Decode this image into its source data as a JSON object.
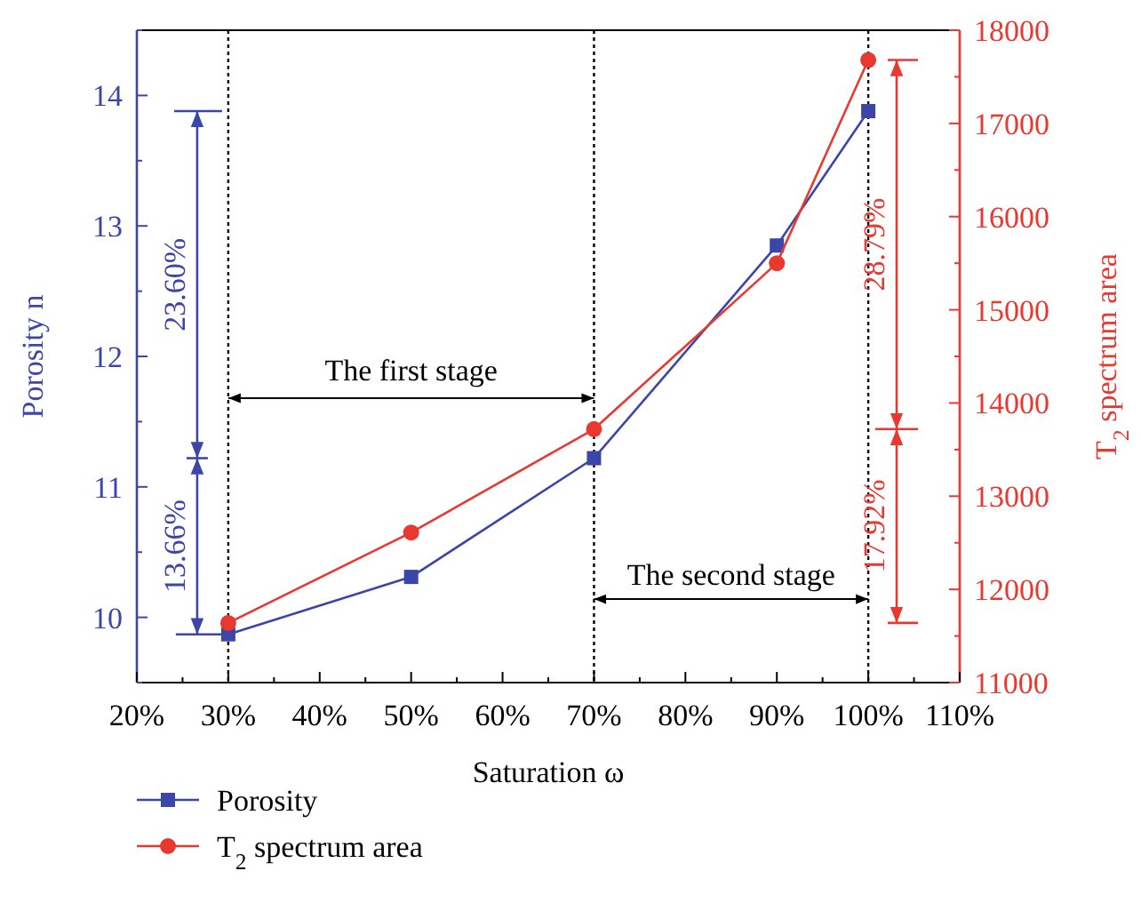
{
  "chart_data": {
    "type": "line",
    "xlabel": "Saturation ω",
    "ylabel": "Porosity n",
    "y2label": "T$_{2}$ spectrum area",
    "x": [
      30,
      50,
      70,
      90,
      100
    ],
    "series": [
      {
        "name": "Porosity",
        "color": "#3c46a8",
        "values": [
          9.87,
          10.31,
          11.22,
          12.85,
          13.88
        ],
        "marker": "square"
      },
      {
        "name": "T$_{2}$ spectrum area",
        "color": "#e8382f",
        "values": [
          11640,
          12610,
          13720,
          15500,
          17680
        ],
        "axis": "y2",
        "marker": "circle"
      }
    ],
    "xlim": [
      20,
      110
    ],
    "xticks": [
      {
        "value": 20,
        "label": "20%"
      },
      {
        "value": 30,
        "label": "30%"
      },
      {
        "value": 40,
        "label": "40%"
      },
      {
        "value": 50,
        "label": "50%"
      },
      {
        "value": 60,
        "label": "60%"
      },
      {
        "value": 70,
        "label": "70%"
      },
      {
        "value": 80,
        "label": "80%"
      },
      {
        "value": 90,
        "label": "90%"
      },
      {
        "value": 100,
        "label": "100%"
      },
      {
        "value": 110,
        "label": "110%"
      }
    ],
    "ylim": [
      9.5,
      14.5
    ],
    "yticks": [
      10,
      11,
      12,
      13,
      14
    ],
    "y2lim": [
      11000,
      18000
    ],
    "y2ticks": [
      11000,
      12000,
      13000,
      14000,
      15000,
      16000,
      17000,
      18000
    ],
    "ref_lines": [
      {
        "axis": "x",
        "value": 30,
        "line_style": "dotted",
        "color": "#000000"
      },
      {
        "axis": "x",
        "value": 70,
        "line_style": "dotted",
        "color": "#000000"
      },
      {
        "axis": "x",
        "value": 100,
        "line_style": "dotted",
        "color": "#000000"
      }
    ],
    "annotations": [
      "The first stage",
      "The second stage",
      "23.60%",
      "13.66%",
      "28.79%",
      "17.92%"
    ],
    "legend": "bottom",
    "grid": false,
    "line_style": "solid"
  }
}
